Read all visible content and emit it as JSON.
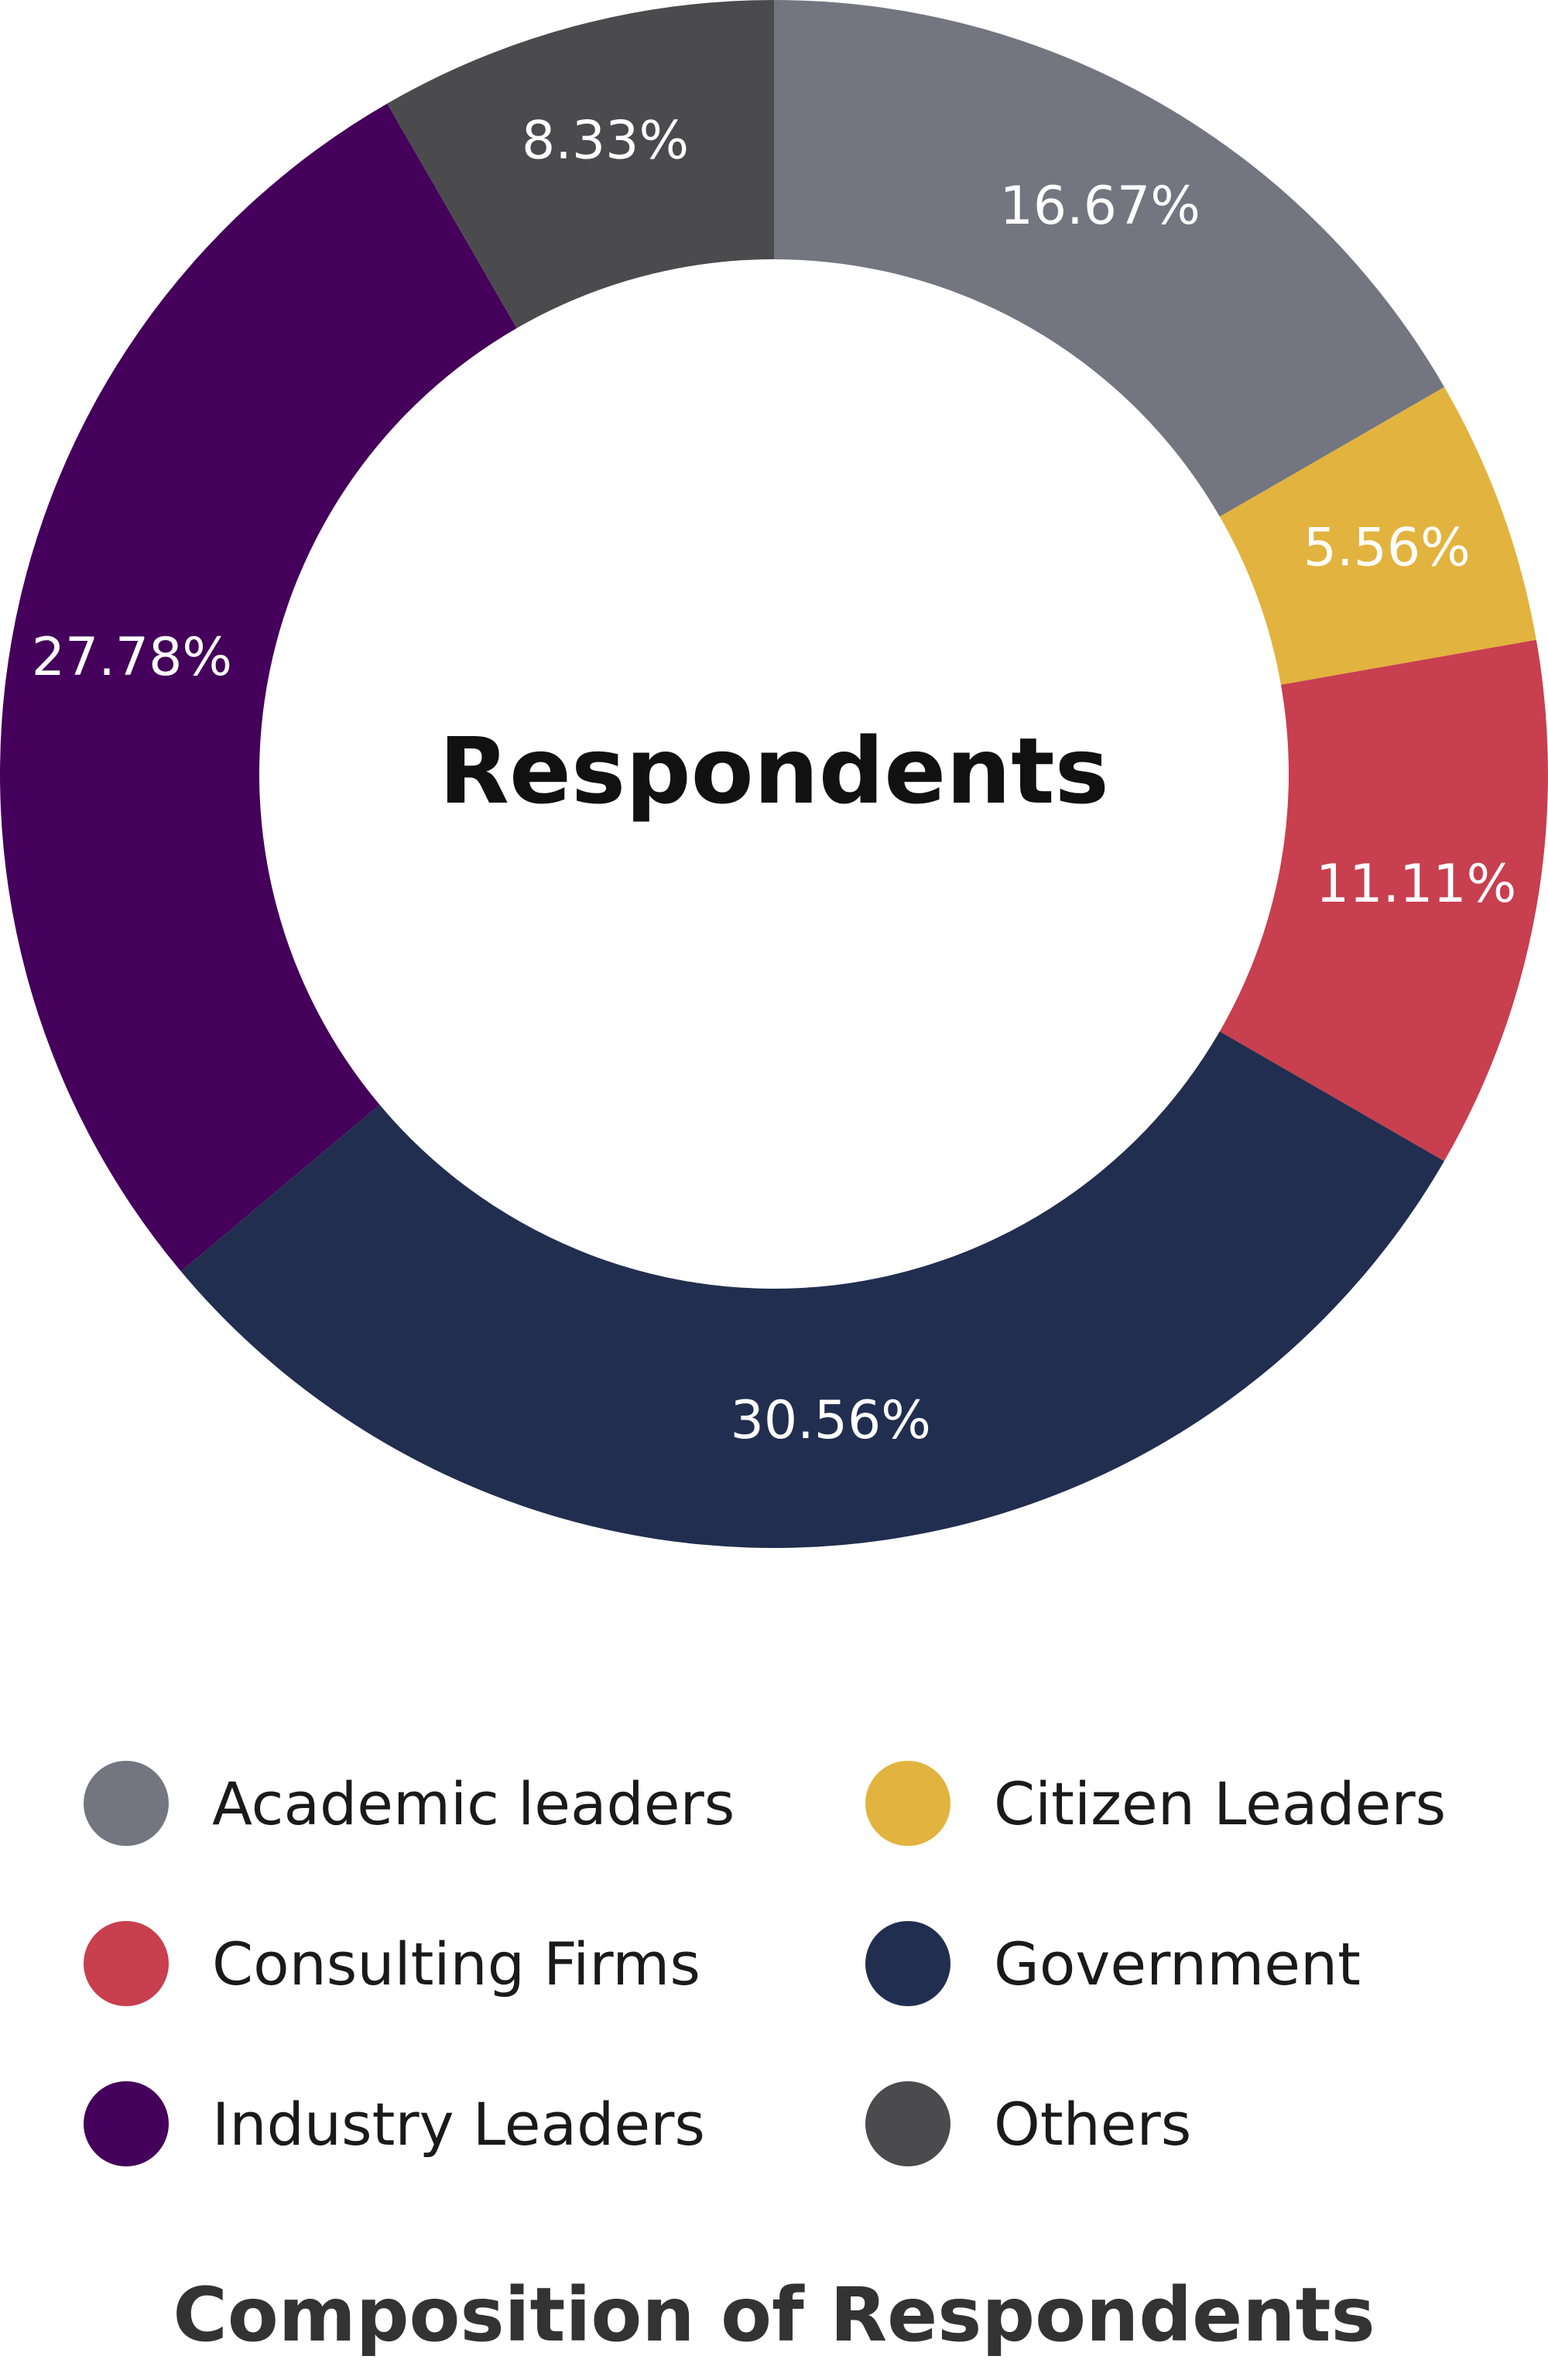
{
  "chart_data": {
    "type": "pie",
    "donut": true,
    "center_label": "Respondents",
    "title": "Composition of Respondents",
    "slices": [
      {
        "name": "Academic leaders",
        "value": 16.67,
        "label": "16.67%",
        "color": "#737680"
      },
      {
        "name": "Citizen Leaders",
        "value": 5.56,
        "label": "5.56%",
        "color": "#e2b33e"
      },
      {
        "name": "Consulting Firms",
        "value": 11.11,
        "label": "11.11%",
        "color": "#c83f4f"
      },
      {
        "name": "Government",
        "value": 30.56,
        "label": "30.56%",
        "color": "#222e4f"
      },
      {
        "name": "Industry Leaders",
        "value": 27.78,
        "label": "27.78%",
        "color": "#44005a"
      },
      {
        "name": "Others",
        "value": 8.33,
        "label": "8.33%",
        "color": "#4b4b4d"
      }
    ],
    "legend_placement": "bottom"
  }
}
